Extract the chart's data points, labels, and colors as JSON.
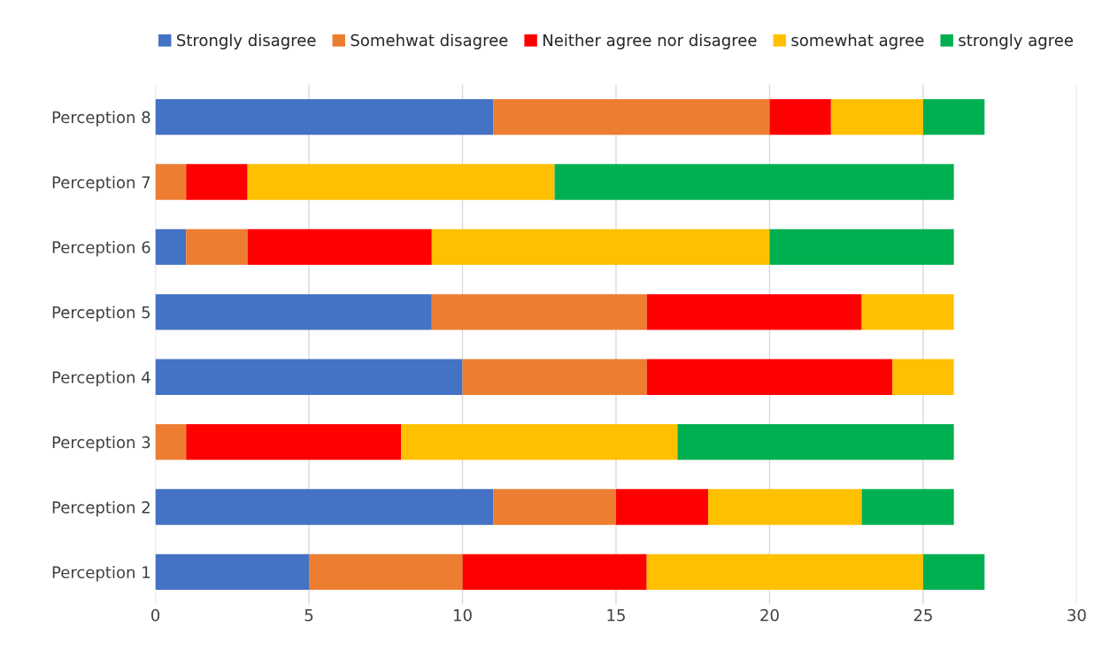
{
  "chart_data": {
    "type": "bar",
    "orientation": "horizontal",
    "stacked": true,
    "categories": [
      "Perception 8",
      "Perception 7",
      "Perception 6",
      "Perception 5",
      "Perception 4",
      "Perception 3",
      "Perception 2",
      "Perception 1"
    ],
    "series": [
      {
        "name": "Strongly disagree",
        "color": "#4472c4",
        "values": [
          11,
          0,
          1,
          9,
          10,
          0,
          11,
          5
        ]
      },
      {
        "name": "Somehwat disagree",
        "color": "#ed7d31",
        "values": [
          9,
          1,
          2,
          7,
          6,
          1,
          4,
          5
        ]
      },
      {
        "name": "Neither agree nor disagree",
        "color": "#ff0000",
        "values": [
          2,
          2,
          6,
          7,
          8,
          7,
          3,
          6
        ]
      },
      {
        "name": "somewhat agree",
        "color": "#ffc000",
        "values": [
          3,
          10,
          11,
          3,
          2,
          9,
          5,
          9
        ]
      },
      {
        "name": "strongly agree",
        "color": "#00b050",
        "values": [
          2,
          13,
          6,
          0,
          0,
          9,
          3,
          2
        ]
      }
    ],
    "xlim": [
      0,
      30
    ],
    "xticks": [
      0,
      5,
      10,
      15,
      20,
      25,
      30
    ],
    "grid": "x",
    "legend": "top"
  }
}
